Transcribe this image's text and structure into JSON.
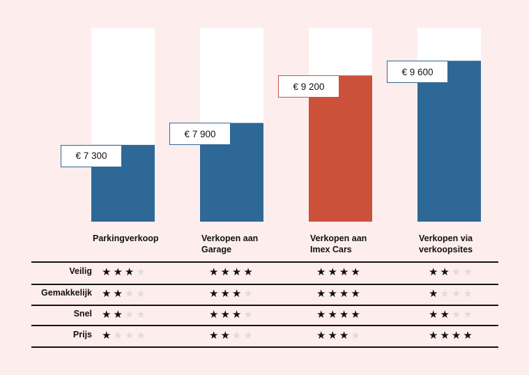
{
  "chart_data": {
    "type": "bar",
    "categories": [
      "Parkingverkoop",
      "Verkopen aan Garage",
      "Verkopen aan Imex Cars",
      "Verkopen via verkoopsites"
    ],
    "category_lines": [
      [
        "Parkingverkoop"
      ],
      [
        "Verkopen aan",
        "Garage"
      ],
      [
        "Verkopen aan",
        "Imex Cars"
      ],
      [
        "Verkopen via",
        "verkoopsites"
      ]
    ],
    "values": [
      7300,
      7900,
      9200,
      9600
    ],
    "value_labels": [
      "€ 7 300",
      "€ 7 900",
      "€ 9 200",
      "€ 9 600"
    ],
    "bar_colors": [
      "#2e6897",
      "#2e6897",
      "#cc513b",
      "#2e6897"
    ],
    "ylim": [
      5200,
      10500
    ],
    "grid": false,
    "title": "",
    "xlabel": "",
    "ylabel": ""
  },
  "ratings": {
    "max_stars": 4,
    "rows": [
      {
        "label": "Veilig",
        "stars": [
          3,
          4,
          4,
          2
        ]
      },
      {
        "label": "Gemakkelijk",
        "stars": [
          2,
          3,
          4,
          1
        ]
      },
      {
        "label": "Snel",
        "stars": [
          2,
          3,
          4,
          2
        ]
      },
      {
        "label": "Prijs",
        "stars": [
          1,
          2,
          3,
          4
        ]
      }
    ]
  },
  "colors": {
    "background": "#fdeeed",
    "blue": "#2e6897",
    "red": "#cc513b",
    "star_on": "#111111",
    "star_off": "#dcdcdc"
  }
}
